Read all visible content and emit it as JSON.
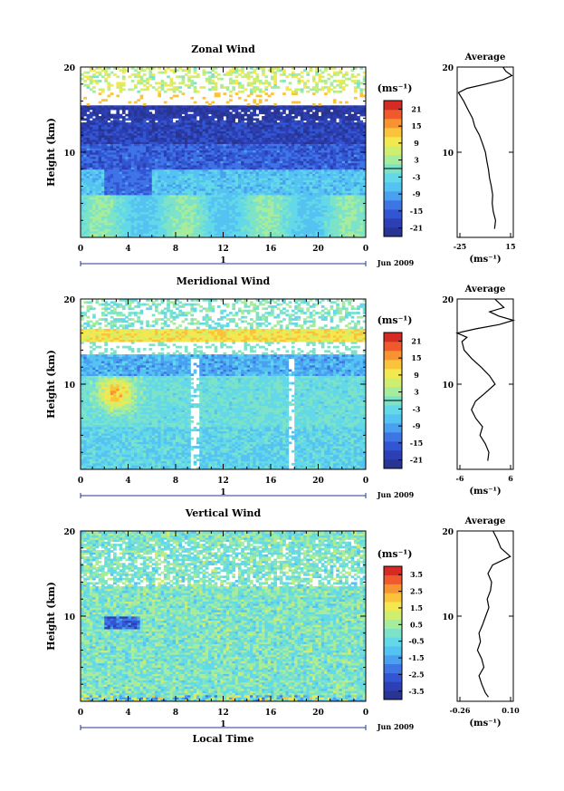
{
  "figure": {
    "date_label": "Jun 2009",
    "xlabel": "Local Time",
    "xticks": [
      "0",
      "4",
      "8",
      "12",
      "16",
      "20",
      "0"
    ],
    "day_marker": "1",
    "ylabel": "Height (km)",
    "yticks": [
      "20",
      "10"
    ],
    "unit_label": "(ms⁻¹)",
    "avg_title": "Average",
    "colors": [
      "#283593",
      "#2c3fb5",
      "#3256d3",
      "#3f74e6",
      "#4aa0f0",
      "#55c3f2",
      "#63d8e8",
      "#7de3c8",
      "#a6ec9c",
      "#cfee6e",
      "#f3e850",
      "#fbc33a",
      "#f79431",
      "#ee5a2b",
      "#d62a24"
    ]
  },
  "chart_data": [
    {
      "type": "heatmap",
      "title": "Zonal Wind",
      "xlabel": "",
      "ylabel": "Height (km)",
      "xlim": [
        0,
        24
      ],
      "ylim": [
        0,
        20
      ],
      "colorbar_ticks": [
        "21",
        "15",
        "9",
        "3",
        "-3",
        "-9",
        "-15",
        "-21"
      ],
      "colorbar_range": [
        -24,
        24
      ],
      "average": {
        "title": "Average",
        "xlabel": "(ms⁻¹)",
        "xticks": [
          "-25",
          "15"
        ],
        "xlim": [
          -25,
          15
        ],
        "y": [
          1,
          2,
          3,
          4,
          5,
          6,
          7,
          8,
          9,
          10,
          11,
          12,
          13,
          14,
          15,
          16,
          17,
          17.5,
          18,
          18.5,
          19,
          19.5,
          20
        ],
        "x": [
          2,
          2,
          1,
          0,
          0,
          -1,
          -2,
          -3,
          -4,
          -5,
          -7,
          -9,
          -12,
          -14,
          -17,
          -20,
          -24,
          -18,
          -5,
          8,
          14,
          10,
          8
        ]
      }
    },
    {
      "type": "heatmap",
      "title": "Meridional Wind",
      "xlabel": "",
      "ylabel": "Height (km)",
      "xlim": [
        0,
        24
      ],
      "ylim": [
        0,
        20
      ],
      "colorbar_ticks": [
        "21",
        "15",
        "9",
        "3",
        "-3",
        "-9",
        "-15",
        "-21"
      ],
      "colorbar_range": [
        -24,
        24
      ],
      "average": {
        "title": "Average",
        "xlabel": "(ms⁻¹)",
        "xticks": [
          "-6",
          "6"
        ],
        "xlim": [
          -6,
          6
        ],
        "y": [
          1,
          2,
          3,
          4,
          5,
          6,
          7,
          8,
          9,
          10,
          11,
          12,
          13,
          14,
          15,
          15.5,
          16,
          16.5,
          17,
          17.5,
          18,
          18.5,
          19,
          20
        ],
        "x": [
          0.5,
          0.8,
          0,
          -1,
          -0.5,
          -2,
          -3,
          -2,
          0,
          2,
          1,
          -1,
          -3,
          -4.5,
          -5,
          -4,
          -6,
          -2,
          3,
          6,
          3,
          1,
          4,
          2
        ]
      }
    },
    {
      "type": "heatmap",
      "title": "Vertical Wind",
      "xlabel": "Local Time",
      "ylabel": "Height (km)",
      "xlim": [
        0,
        24
      ],
      "ylim": [
        0,
        20
      ],
      "colorbar_ticks": [
        "3.5",
        "2.5",
        "1.5",
        "0.5",
        "-0.5",
        "-1.5",
        "-2.5",
        "-3.5"
      ],
      "colorbar_range": [
        -4,
        4
      ],
      "average": {
        "title": "Average",
        "xlabel": "(ms⁻¹)",
        "xticks": [
          "-0.26",
          "0.10"
        ],
        "xlim": [
          -0.26,
          0.1
        ],
        "y": [
          0.5,
          1,
          2,
          3,
          4,
          5,
          6,
          7,
          8,
          9,
          10,
          11,
          12,
          13,
          14,
          15,
          16,
          17,
          18,
          19,
          20
        ],
        "x": [
          -0.06,
          -0.08,
          -0.1,
          -0.12,
          -0.09,
          -0.1,
          -0.13,
          -0.11,
          -0.12,
          -0.1,
          -0.08,
          -0.06,
          -0.07,
          -0.05,
          -0.04,
          -0.06,
          -0.03,
          0.08,
          0.02,
          0.0,
          -0.03
        ]
      }
    }
  ]
}
